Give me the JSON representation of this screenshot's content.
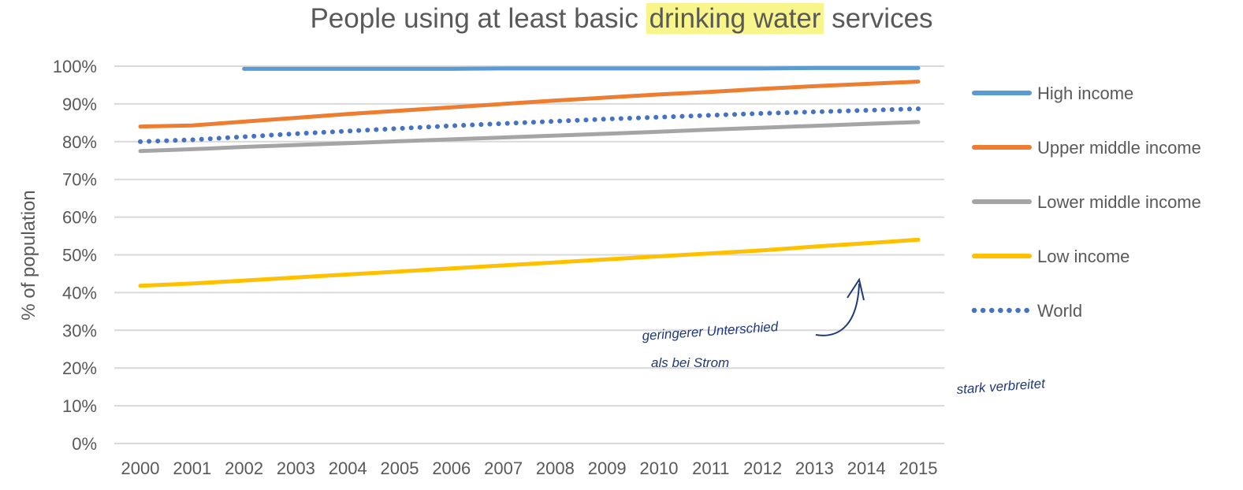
{
  "chart_data": {
    "type": "line",
    "title_before": "People using at least basic ",
    "title_highlight": "drinking water",
    "title_after": " services",
    "highlight_color": "#f8f58a",
    "xlabel": "",
    "ylabel": "% of population",
    "ylim": [
      0,
      100
    ],
    "y_ticks": [
      "0%",
      "10%",
      "20%",
      "30%",
      "40%",
      "50%",
      "60%",
      "70%",
      "80%",
      "90%",
      "100%"
    ],
    "categories": [
      "2000",
      "2001",
      "2002",
      "2003",
      "2004",
      "2005",
      "2006",
      "2007",
      "2008",
      "2009",
      "2010",
      "2011",
      "2012",
      "2013",
      "2014",
      "2015"
    ],
    "grid": true,
    "legend_position": "right",
    "series": [
      {
        "name": "High income",
        "color": "#5b9bd5",
        "style": "solid",
        "values": [
          null,
          null,
          99.3,
          99.3,
          99.3,
          99.3,
          99.3,
          99.4,
          99.4,
          99.4,
          99.4,
          99.4,
          99.4,
          99.5,
          99.5,
          99.5
        ]
      },
      {
        "name": "Upper middle income",
        "color": "#ed7d31",
        "style": "solid",
        "values": [
          84.0,
          84.3,
          85.3,
          86.3,
          87.3,
          88.2,
          89.1,
          90.0,
          90.9,
          91.7,
          92.5,
          93.2,
          94.0,
          94.7,
          95.3,
          95.9
        ]
      },
      {
        "name": "Lower middle income",
        "color": "#a5a5a5",
        "style": "solid",
        "values": [
          77.5,
          78.0,
          78.6,
          79.1,
          79.6,
          80.1,
          80.6,
          81.1,
          81.6,
          82.1,
          82.6,
          83.2,
          83.7,
          84.2,
          84.7,
          85.2
        ]
      },
      {
        "name": "Low income",
        "color": "#ffc000",
        "style": "solid",
        "values": [
          41.8,
          42.4,
          43.2,
          44.0,
          44.8,
          45.6,
          46.4,
          47.2,
          48.0,
          48.8,
          49.6,
          50.4,
          51.2,
          52.2,
          53.1,
          54.0
        ]
      },
      {
        "name": "World",
        "color": "#4472c4",
        "style": "dotted",
        "values": [
          80.0,
          80.5,
          81.3,
          82.1,
          82.8,
          83.5,
          84.2,
          84.8,
          85.4,
          86.0,
          86.5,
          87.0,
          87.5,
          87.9,
          88.3,
          88.7
        ]
      }
    ],
    "annotations": [
      {
        "text": "geringerer Unterschied",
        "color": "#1f3a7a"
      },
      {
        "text": "als bei Strom",
        "color": "#1f3a7a"
      },
      {
        "text": "stark verbreitet",
        "color": "#1f3a7a"
      }
    ]
  }
}
